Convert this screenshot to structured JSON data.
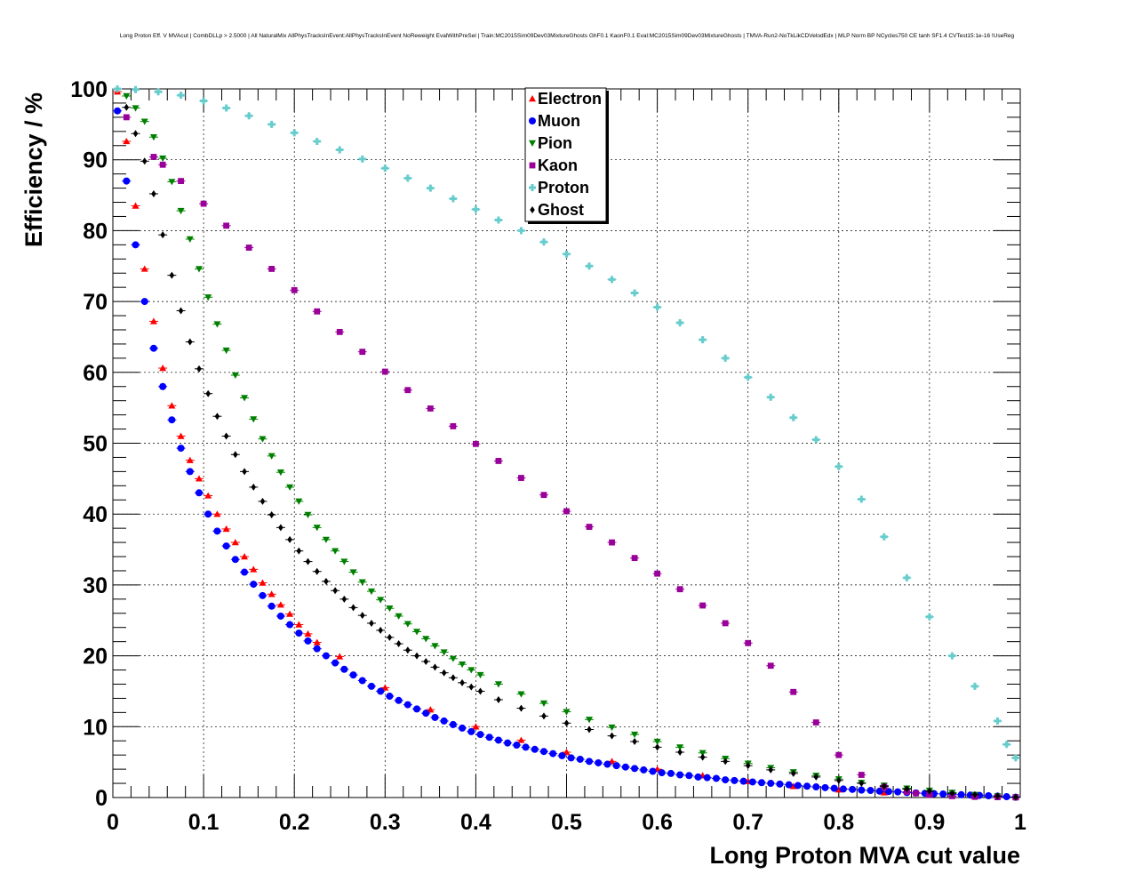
{
  "chart_data": {
    "type": "scatter",
    "title": "Long Proton Eff. V MVAcut | CombDLLp > 2.5000 | All NaturalMix AllPhysTracksInEvent:AllPhysTracksInEvent NoReweight EvalWithPreSel | Train:MC2015Sim09Dev03MixtureGhosts GhF0.1 KaonF0.1 Eval:MC2015Sim09Dev03MixtureGhosts | TMVA-Run2-NoTkLikCDVelodEdx | MLP Norm BP NCycles750 CE tanh SF1.4 CVTest15:1e-16 !UseReg",
    "xlabel": "Long Proton MVA cut value",
    "ylabel": "Efficiency / %",
    "xlim": [
      0,
      1
    ],
    "ylim": [
      0,
      100
    ],
    "xticks": [
      "0",
      "0.1",
      "0.2",
      "0.3",
      "0.4",
      "0.5",
      "0.6",
      "0.7",
      "0.8",
      "0.9",
      "1"
    ],
    "yticks": [
      "0",
      "10",
      "20",
      "30",
      "40",
      "50",
      "60",
      "70",
      "80",
      "90",
      "100"
    ],
    "grid": true,
    "legend_position": "top-center",
    "series": [
      {
        "name": "Electron",
        "color": "#ff0000",
        "marker": "triangle-up",
        "x": [
          0.005,
          0.015,
          0.025,
          0.035,
          0.045,
          0.055,
          0.065,
          0.075,
          0.085,
          0.095,
          0.105,
          0.115,
          0.125,
          0.135,
          0.145,
          0.155,
          0.165,
          0.175,
          0.185,
          0.195,
          0.205,
          0.215,
          0.225,
          0.25,
          0.3,
          0.35,
          0.4,
          0.45,
          0.5,
          0.55,
          0.6,
          0.65,
          0.7,
          0.75,
          0.8,
          0.85,
          0.9,
          0.95,
          0.995
        ],
        "values": [
          99.6,
          92.6,
          83.5,
          74.6,
          67.2,
          60.6,
          55.3,
          51.0,
          47.6,
          45.0,
          42.6,
          40.0,
          37.9,
          36.0,
          34.0,
          32.2,
          30.3,
          28.7,
          27.2,
          25.9,
          24.4,
          23.1,
          21.9,
          19.9,
          15.5,
          12.4,
          10.0,
          8.1,
          6.4,
          5.1,
          4.0,
          3.1,
          2.3,
          1.6,
          1.1,
          0.7,
          0.4,
          0.2,
          0.05
        ]
      },
      {
        "name": "Muon",
        "color": "#0000ff",
        "marker": "circle",
        "x": [
          0.005,
          0.015,
          0.025,
          0.035,
          0.045,
          0.055,
          0.065,
          0.075,
          0.085,
          0.095,
          0.105,
          0.115,
          0.125,
          0.135,
          0.145,
          0.155,
          0.165,
          0.175,
          0.185,
          0.195,
          0.205,
          0.215,
          0.225,
          0.235,
          0.245,
          0.255,
          0.265,
          0.275,
          0.285,
          0.295,
          0.305,
          0.315,
          0.325,
          0.335,
          0.345,
          0.355,
          0.365,
          0.375,
          0.385,
          0.395,
          0.405,
          0.415,
          0.425,
          0.435,
          0.445,
          0.455,
          0.465,
          0.475,
          0.485,
          0.495,
          0.505,
          0.515,
          0.525,
          0.535,
          0.545,
          0.555,
          0.565,
          0.575,
          0.585,
          0.595,
          0.605,
          0.615,
          0.625,
          0.635,
          0.645,
          0.655,
          0.665,
          0.675,
          0.685,
          0.695,
          0.705,
          0.715,
          0.725,
          0.735,
          0.745,
          0.755,
          0.765,
          0.775,
          0.785,
          0.795,
          0.805,
          0.815,
          0.825,
          0.835,
          0.845,
          0.855,
          0.865,
          0.875,
          0.885,
          0.895,
          0.905,
          0.915,
          0.925,
          0.935,
          0.945,
          0.955,
          0.965,
          0.975,
          0.985,
          0.995
        ],
        "values": [
          96.9,
          87.0,
          78.0,
          70.0,
          63.4,
          58.0,
          53.3,
          49.3,
          46.0,
          43.0,
          40.0,
          37.6,
          35.5,
          33.6,
          31.8,
          30.1,
          28.5,
          27.0,
          25.6,
          24.4,
          23.2,
          22.1,
          21.0,
          20.0,
          19.0,
          18.1,
          17.3,
          16.5,
          15.7,
          15.0,
          14.3,
          13.7,
          13.1,
          12.5,
          11.9,
          11.3,
          10.8,
          10.3,
          9.8,
          9.3,
          8.9,
          8.5,
          8.1,
          7.7,
          7.4,
          7.1,
          6.8,
          6.5,
          6.2,
          5.9,
          5.6,
          5.4,
          5.1,
          4.9,
          4.7,
          4.5,
          4.3,
          4.1,
          3.9,
          3.7,
          3.5,
          3.4,
          3.2,
          3.1,
          2.9,
          2.8,
          2.7,
          2.5,
          2.4,
          2.3,
          2.2,
          2.1,
          2.0,
          1.9,
          1.8,
          1.7,
          1.6,
          1.5,
          1.4,
          1.3,
          1.2,
          1.15,
          1.05,
          1.0,
          0.9,
          0.85,
          0.8,
          0.7,
          0.65,
          0.6,
          0.55,
          0.5,
          0.45,
          0.4,
          0.35,
          0.3,
          0.25,
          0.2,
          0.12,
          0.05
        ]
      },
      {
        "name": "Pion",
        "color": "#008000",
        "marker": "triangle-down",
        "x": [
          0.015,
          0.025,
          0.035,
          0.045,
          0.055,
          0.065,
          0.075,
          0.085,
          0.095,
          0.105,
          0.115,
          0.125,
          0.135,
          0.145,
          0.155,
          0.165,
          0.175,
          0.185,
          0.195,
          0.205,
          0.215,
          0.225,
          0.235,
          0.245,
          0.255,
          0.265,
          0.275,
          0.285,
          0.295,
          0.305,
          0.315,
          0.325,
          0.335,
          0.345,
          0.355,
          0.365,
          0.375,
          0.385,
          0.395,
          0.405,
          0.425,
          0.45,
          0.475,
          0.5,
          0.525,
          0.55,
          0.575,
          0.6,
          0.625,
          0.65,
          0.675,
          0.7,
          0.725,
          0.75,
          0.775,
          0.8,
          0.825,
          0.85,
          0.875,
          0.9,
          0.925,
          0.95,
          0.975,
          0.995
        ],
        "values": [
          99.0,
          97.3,
          95.4,
          93.2,
          90.2,
          86.9,
          82.8,
          78.8,
          74.6,
          70.6,
          66.8,
          63.1,
          59.6,
          56.4,
          53.4,
          50.6,
          48.2,
          45.9,
          43.8,
          41.8,
          39.9,
          38.1,
          36.4,
          34.8,
          33.3,
          31.8,
          30.4,
          29.1,
          27.9,
          26.7,
          25.6,
          24.5,
          23.4,
          22.4,
          21.4,
          20.5,
          19.6,
          18.8,
          18.0,
          17.3,
          16.0,
          14.6,
          13.3,
          12.1,
          11.0,
          9.9,
          8.9,
          7.9,
          7.1,
          6.3,
          5.5,
          4.8,
          4.2,
          3.6,
          3.1,
          2.6,
          2.1,
          1.7,
          1.3,
          1.0,
          0.7,
          0.4,
          0.2,
          0.05
        ]
      },
      {
        "name": "Kaon",
        "color": "#990099",
        "marker": "square",
        "x": [
          0.015,
          0.045,
          0.055,
          0.075,
          0.1,
          0.125,
          0.15,
          0.175,
          0.2,
          0.225,
          0.25,
          0.275,
          0.3,
          0.325,
          0.35,
          0.375,
          0.4,
          0.425,
          0.45,
          0.475,
          0.5,
          0.525,
          0.55,
          0.575,
          0.6,
          0.625,
          0.65,
          0.675,
          0.7,
          0.725,
          0.75,
          0.775,
          0.8,
          0.825,
          0.85,
          0.875,
          0.885,
          0.9,
          0.925,
          0.95,
          0.975,
          0.995
        ],
        "values": [
          96.0,
          90.4,
          89.3,
          87.0,
          83.8,
          80.7,
          77.6,
          74.6,
          71.6,
          68.6,
          65.7,
          62.9,
          60.1,
          57.5,
          54.9,
          52.4,
          49.9,
          47.5,
          45.1,
          42.7,
          40.4,
          38.2,
          36.0,
          33.8,
          31.6,
          29.4,
          27.1,
          24.6,
          21.8,
          18.6,
          14.9,
          10.6,
          6.0,
          3.2,
          1.5,
          0.8,
          0.6,
          0.4,
          0.2,
          0.1,
          0.05,
          0.02
        ]
      },
      {
        "name": "Proton",
        "color": "#66cccc",
        "marker": "cross",
        "x": [
          0.005,
          0.025,
          0.05,
          0.075,
          0.1,
          0.125,
          0.15,
          0.175,
          0.2,
          0.225,
          0.25,
          0.275,
          0.3,
          0.325,
          0.35,
          0.375,
          0.4,
          0.425,
          0.45,
          0.475,
          0.5,
          0.525,
          0.55,
          0.575,
          0.6,
          0.625,
          0.65,
          0.675,
          0.7,
          0.725,
          0.75,
          0.775,
          0.8,
          0.825,
          0.85,
          0.875,
          0.9,
          0.925,
          0.95,
          0.975,
          0.985,
          0.995
        ],
        "values": [
          100.0,
          99.9,
          99.6,
          99.1,
          98.3,
          97.3,
          96.2,
          95.0,
          93.8,
          92.6,
          91.4,
          90.1,
          88.8,
          87.4,
          86.0,
          84.5,
          83.0,
          81.5,
          80.0,
          78.4,
          76.7,
          75.0,
          73.1,
          71.2,
          69.2,
          67.0,
          64.6,
          62.0,
          59.3,
          56.5,
          53.6,
          50.5,
          46.7,
          42.1,
          36.8,
          31.0,
          25.5,
          20.0,
          15.7,
          10.8,
          7.5,
          5.6
        ]
      },
      {
        "name": "Ghost",
        "color": "#000000",
        "marker": "diamond",
        "x": [
          0.015,
          0.025,
          0.035,
          0.045,
          0.055,
          0.065,
          0.075,
          0.085,
          0.095,
          0.105,
          0.115,
          0.125,
          0.135,
          0.145,
          0.155,
          0.165,
          0.175,
          0.185,
          0.195,
          0.205,
          0.215,
          0.225,
          0.235,
          0.245,
          0.255,
          0.265,
          0.275,
          0.285,
          0.295,
          0.305,
          0.315,
          0.325,
          0.335,
          0.345,
          0.355,
          0.365,
          0.375,
          0.385,
          0.395,
          0.405,
          0.425,
          0.45,
          0.475,
          0.5,
          0.525,
          0.55,
          0.575,
          0.6,
          0.625,
          0.65,
          0.675,
          0.7,
          0.725,
          0.75,
          0.775,
          0.8,
          0.825,
          0.85,
          0.875,
          0.9,
          0.925,
          0.95,
          0.975,
          0.995
        ],
        "values": [
          97.4,
          93.7,
          89.8,
          85.2,
          79.4,
          73.7,
          68.7,
          64.3,
          60.5,
          57.0,
          53.8,
          51.0,
          48.4,
          46.0,
          43.8,
          41.8,
          39.9,
          38.1,
          36.4,
          34.8,
          33.3,
          31.9,
          30.5,
          29.2,
          28.0,
          26.8,
          25.7,
          24.6,
          23.6,
          22.6,
          21.7,
          20.8,
          20.0,
          19.2,
          18.4,
          17.6,
          16.9,
          16.2,
          15.6,
          15.0,
          13.8,
          12.6,
          11.5,
          10.5,
          9.6,
          8.7,
          7.9,
          7.1,
          6.4,
          5.7,
          5.1,
          4.5,
          3.9,
          3.4,
          2.9,
          2.4,
          2.0,
          1.6,
          1.2,
          0.9,
          0.6,
          0.4,
          0.2,
          0.05
        ]
      }
    ]
  }
}
